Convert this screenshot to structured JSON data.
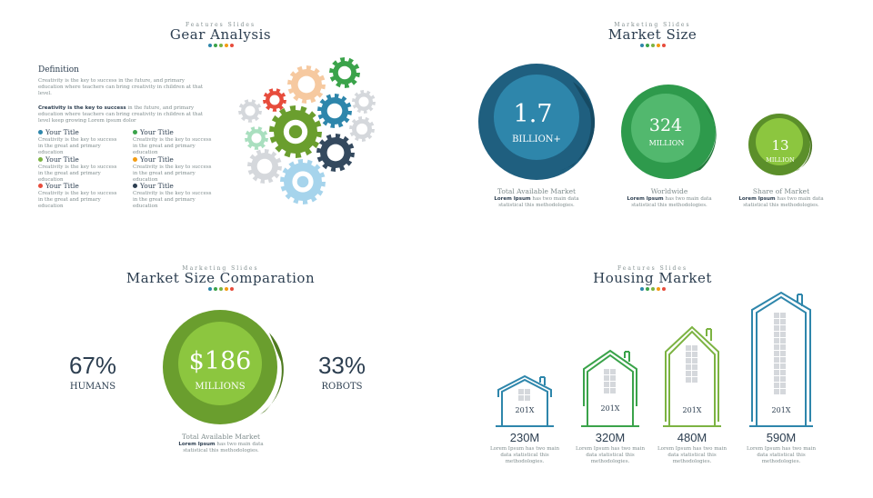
{
  "dot_colors": [
    "#2e86ab",
    "#3aa34a",
    "#7cb342",
    "#f39c12",
    "#e74c3c"
  ],
  "gear": {
    "kicker": "Features Slides",
    "title": "Gear Analysis",
    "definition_heading": "Definition",
    "paragraph1": "Creativity is the key to success in the future, and primary education where teachers can bring creativity in children at that level.",
    "paragraph2_bold": "Creativity is the key to success",
    "paragraph2_rest": " in the future, and primary education where teachers can bring creativity in children at that level keep growing Lorem ipsum dolor",
    "items": [
      {
        "title": "Your Title",
        "color": "#2e86ab",
        "desc": "Creativity is the key to success in the great and primary education"
      },
      {
        "title": "Your Title",
        "color": "#3aa34a",
        "desc": "Creativity is the key to success in the great and primary education"
      },
      {
        "title": "Your Title",
        "color": "#7cb342",
        "desc": "Creativity is the key to success in the great and primary education"
      },
      {
        "title": "Your Title",
        "color": "#f39c12",
        "desc": "Creativity is the key to success in the great and primary education"
      },
      {
        "title": "Your Title",
        "color": "#e74c3c",
        "desc": "Creativity is the key to success in the great and primary education"
      },
      {
        "title": "Your Title",
        "color": "#2c3e50",
        "desc": "Creativity is the key to success in the great and primary education"
      }
    ]
  },
  "market_size": {
    "kicker": "Marketing Slides",
    "title": "Market Size",
    "circles": [
      {
        "value": "1.7",
        "unit": "BILLION+",
        "label": "Total Available Market",
        "desc_bold": "Lorem Ipsum",
        "desc": " has two main data statistical this methodologies."
      },
      {
        "value": "324",
        "unit": "MILLION",
        "label": "Worldwide",
        "desc_bold": "Lorem Ipsum",
        "desc": " has two main data statistical this methodologies."
      },
      {
        "value": "13",
        "unit": "MILLION",
        "label": "Share of Market",
        "desc_bold": "Lorem Ipsum",
        "desc": " has two main data statistical this methodologies."
      }
    ]
  },
  "comparation": {
    "kicker": "Marketing Slides",
    "title": "Market Size Comparation",
    "left_value": "67%",
    "left_label": "HUMANS",
    "right_value": "33%",
    "right_label": "ROBOTS",
    "center_value": "$186",
    "center_unit": "MILLIONS",
    "label": "Total Available Market",
    "desc_bold": "Lorem Ipsum",
    "desc": " has two main data statistical this methodologies."
  },
  "housing": {
    "kicker": "Features Slides",
    "title": "Housing Market",
    "houses": [
      {
        "year": "201X",
        "value": "230M",
        "desc": "Lorem Ipsum has two main data statistical this methodologies."
      },
      {
        "year": "201X",
        "value": "320M",
        "desc": "Lorem Ipsum has two main data statistical this methodologies."
      },
      {
        "year": "201X",
        "value": "480M",
        "desc": "Lorem Ipsum has two main data statistical this methodologies."
      },
      {
        "year": "201X",
        "value": "590M",
        "desc": "Lorem Ipsum has two main data statistical this methodologies."
      }
    ]
  }
}
